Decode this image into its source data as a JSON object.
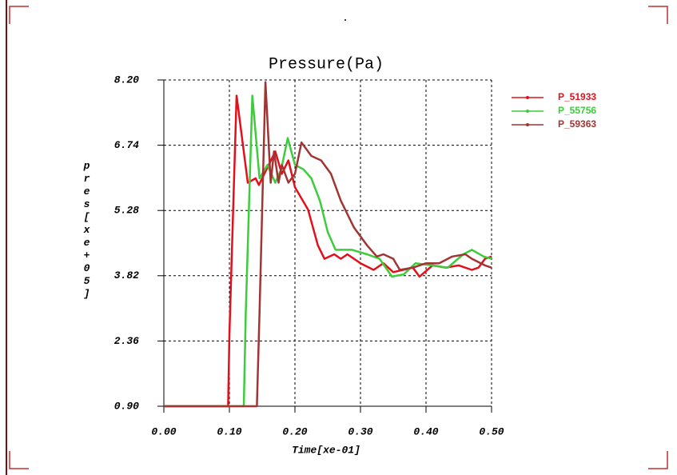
{
  "chart_data": {
    "type": "line",
    "title": "Pressure(Pa)",
    "x_label": "Time[xe-01]",
    "y_label": "pres[xe+05]",
    "xlim": [
      0,
      0.5
    ],
    "ylim": [
      0.9,
      8.2
    ],
    "xticks": [
      {
        "value": 0,
        "label": "0.00"
      },
      {
        "value": 0.1,
        "label": "0.10"
      },
      {
        "value": 0.2,
        "label": "0.20"
      },
      {
        "value": 0.3,
        "label": "0.30"
      },
      {
        "value": 0.4,
        "label": "0.40"
      },
      {
        "value": 0.5,
        "label": "0.50"
      }
    ],
    "yticks": [
      {
        "value": 0.9,
        "label": "0.90"
      },
      2.36,
      3.82,
      5.28,
      6.74,
      {
        "value": 8.2,
        "label": "8.20"
      }
    ],
    "grid": true,
    "legend": "upper right",
    "series": [
      {
        "name": "P_51933",
        "color": "#e3101c",
        "x": [
          0,
          0.098,
          0.1,
          0.111,
          0.128,
          0.14,
          0.145,
          0.17,
          0.18,
          0.19,
          0.2,
          0.22,
          0.235,
          0.245,
          0.26,
          0.27,
          0.28,
          0.3,
          0.32,
          0.335,
          0.35,
          0.38,
          0.39,
          0.41,
          0.43,
          0.45,
          0.47,
          0.48,
          0.49,
          0.5
        ],
        "values": [
          0.9,
          0.9,
          2.5,
          7.85,
          5.9,
          6.0,
          5.85,
          6.6,
          6.1,
          6.4,
          5.8,
          5.3,
          4.5,
          4.2,
          4.3,
          4.2,
          4.3,
          4.1,
          3.95,
          4.1,
          3.9,
          4.0,
          3.8,
          4.05,
          4.0,
          4.05,
          3.95,
          4.0,
          4.2,
          4.25
        ]
      },
      {
        "name": "P_55756",
        "color": "#3ccc3c",
        "x": [
          0,
          0.122,
          0.125,
          0.135,
          0.146,
          0.158,
          0.17,
          0.179,
          0.189,
          0.2,
          0.213,
          0.225,
          0.238,
          0.25,
          0.262,
          0.287,
          0.31,
          0.329,
          0.341,
          0.348,
          0.366,
          0.384,
          0.409,
          0.433,
          0.457,
          0.47,
          0.488,
          0.5
        ],
        "values": [
          0.9,
          0.9,
          3.0,
          7.85,
          6.0,
          6.3,
          5.9,
          6.2,
          6.9,
          6.3,
          6.2,
          6.0,
          5.5,
          4.8,
          4.4,
          4.4,
          4.3,
          4.2,
          3.95,
          3.8,
          3.85,
          4.1,
          4.05,
          4.0,
          4.3,
          4.4,
          4.25,
          4.2
        ]
      },
      {
        "name": "P_59363",
        "color": "#a23434",
        "x": [
          0,
          0.142,
          0.146,
          0.155,
          0.163,
          0.168,
          0.175,
          0.18,
          0.19,
          0.2,
          0.21,
          0.225,
          0.24,
          0.255,
          0.27,
          0.29,
          0.31,
          0.325,
          0.335,
          0.35,
          0.36,
          0.38,
          0.4,
          0.42,
          0.44,
          0.46,
          0.47,
          0.49,
          0.5
        ],
        "values": [
          0.9,
          0.9,
          3.0,
          8.15,
          5.9,
          6.6,
          5.9,
          6.3,
          5.9,
          6.1,
          6.8,
          6.5,
          6.4,
          6.1,
          5.5,
          4.9,
          4.5,
          4.25,
          4.3,
          4.2,
          3.95,
          4.0,
          4.1,
          4.1,
          4.25,
          4.3,
          4.2,
          4.05,
          4.0
        ]
      }
    ]
  }
}
